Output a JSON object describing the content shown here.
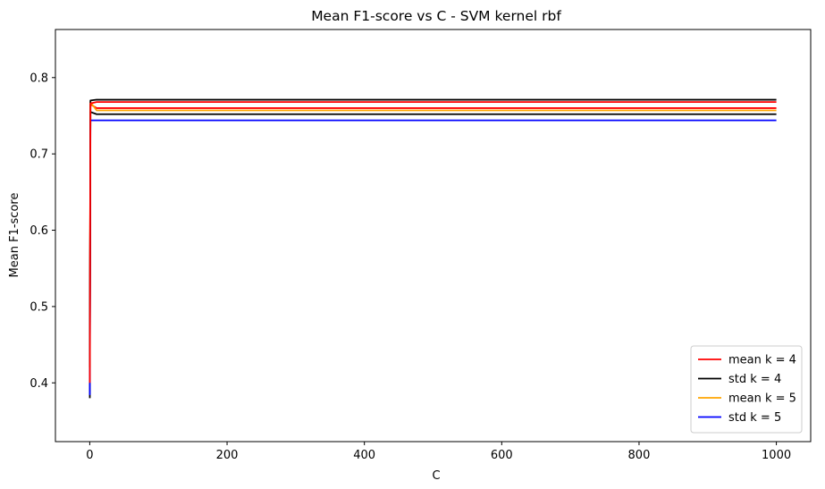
{
  "chart_data": {
    "type": "line",
    "title": "Mean F1-score vs C - SVM kernel rbf",
    "xlabel": "C",
    "ylabel": "Mean F1-score",
    "xlim": [
      -50,
      1050
    ],
    "ylim": [
      0.323,
      0.863
    ],
    "xticks": [
      0,
      200,
      400,
      600,
      800,
      1000
    ],
    "xtick_labels": [
      "0",
      "200",
      "400",
      "600",
      "800",
      "1000"
    ],
    "yticks": [
      0.4,
      0.5,
      0.6,
      0.7,
      0.8
    ],
    "ytick_labels": [
      "0.4",
      "0.5",
      "0.6",
      "0.7",
      "0.8"
    ],
    "grid": false,
    "legend_position": "bottom-right",
    "series": [
      {
        "name": "mean k = 4",
        "color": "#ff0000",
        "x": [
          0.1,
          1,
          10,
          100,
          1000
        ],
        "y": [
          0.46,
          0.765,
          0.76,
          0.76,
          0.76
        ]
      },
      {
        "name": "std k = 4",
        "color": "#000000",
        "x": [
          0.1,
          1,
          10,
          100,
          1000
        ],
        "y": [
          0.38,
          0.755,
          0.752,
          0.752,
          0.752
        ]
      },
      {
        "name": "mean k = 5",
        "color": "#ffa500",
        "x": [
          0.1,
          1,
          10,
          100,
          1000
        ],
        "y": [
          0.45,
          0.768,
          0.757,
          0.757,
          0.757
        ]
      },
      {
        "name": "std k = 5",
        "color": "#0000ff",
        "x": [
          0.1,
          1,
          10,
          100,
          1000
        ],
        "y": [
          0.384,
          0.744,
          0.744,
          0.744,
          0.744
        ]
      },
      {
        "name": "",
        "color": "#000000",
        "x": [
          0.1,
          1,
          10,
          100,
          1000
        ],
        "y": [
          0.42,
          0.77,
          0.771,
          0.771,
          0.771
        ]
      },
      {
        "name": "",
        "color": "#ff0000",
        "x": [
          0.1,
          1,
          10,
          100,
          1000
        ],
        "y": [
          0.4,
          0.766,
          0.768,
          0.768,
          0.768
        ]
      }
    ]
  }
}
